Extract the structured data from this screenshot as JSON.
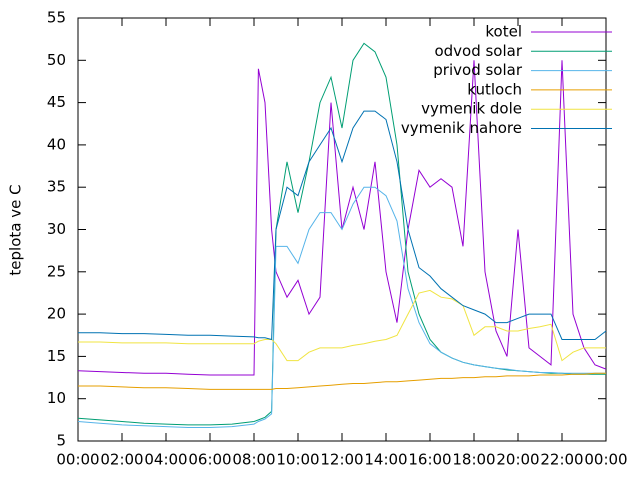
{
  "chart_data": {
    "type": "line",
    "ylabel": "teplota ve C",
    "x": [
      0,
      1,
      2,
      3,
      4,
      5,
      6,
      7,
      8,
      8.2,
      8.5,
      8.8,
      9,
      9.5,
      10,
      10.5,
      11,
      11.5,
      12,
      12.5,
      13,
      13.5,
      14,
      14.5,
      15,
      15.5,
      16,
      16.5,
      17,
      17.5,
      18,
      18.5,
      19,
      19.5,
      20,
      20.5,
      21,
      21.5,
      22,
      22.5,
      23,
      23.5,
      24
    ],
    "xlim": [
      0,
      24
    ],
    "xticks": [
      {
        "value": 0,
        "label": "00:00"
      },
      {
        "value": 2,
        "label": "02:00"
      },
      {
        "value": 4,
        "label": "04:00"
      },
      {
        "value": 6,
        "label": "06:00"
      },
      {
        "value": 8,
        "label": "08:00"
      },
      {
        "value": 10,
        "label": "10:00"
      },
      {
        "value": 12,
        "label": "12:00"
      },
      {
        "value": 14,
        "label": "14:00"
      },
      {
        "value": 16,
        "label": "16:00"
      },
      {
        "value": 18,
        "label": "18:00"
      },
      {
        "value": 20,
        "label": "20:00"
      },
      {
        "value": 22,
        "label": "22:00"
      },
      {
        "value": 24,
        "label": "00:00"
      }
    ],
    "ylim": [
      5,
      55
    ],
    "yticks": [
      5,
      10,
      15,
      20,
      25,
      30,
      35,
      40,
      45,
      50,
      55
    ],
    "legend": "top-right",
    "series": [
      {
        "name": "kotel",
        "color": "#9400d3",
        "values": [
          13.3,
          13.2,
          13.1,
          13,
          13,
          12.9,
          12.8,
          12.8,
          12.8,
          49,
          45,
          30,
          25,
          22,
          24,
          20,
          22,
          45,
          30,
          35,
          30,
          38,
          25,
          19,
          30,
          37,
          35,
          36,
          35,
          28,
          50,
          25,
          18,
          15,
          30,
          16,
          15,
          14,
          50,
          20,
          16,
          14,
          13.5
        ]
      },
      {
        "name": "odvod solar",
        "color": "#009e73",
        "values": [
          7.7,
          7.5,
          7.3,
          7.1,
          7,
          6.9,
          6.9,
          7,
          7.3,
          7.5,
          7.8,
          8.5,
          30,
          38,
          32,
          38,
          45,
          48,
          42,
          50,
          52,
          51,
          48,
          40,
          25,
          20,
          17,
          15.5,
          14.8,
          14.3,
          14,
          13.8,
          13.6,
          13.4,
          13.3,
          13.2,
          13.1,
          13,
          13,
          12.9,
          12.9,
          12.9,
          12.9
        ]
      },
      {
        "name": "privod solar",
        "color": "#56b4e9",
        "values": [
          7.3,
          7.1,
          6.9,
          6.8,
          6.7,
          6.6,
          6.6,
          6.7,
          7,
          7.3,
          7.6,
          8.2,
          28,
          28,
          26,
          30,
          32,
          32,
          30,
          33,
          35,
          35,
          34,
          31,
          23,
          19,
          16.5,
          15.5,
          14.8,
          14.3,
          14,
          13.8,
          13.6,
          13.5,
          13.3,
          13.2,
          13.1,
          13.1,
          13,
          13,
          13,
          13,
          13
        ]
      },
      {
        "name": "kutloch",
        "color": "#e69f00",
        "values": [
          11.5,
          11.5,
          11.4,
          11.3,
          11.3,
          11.2,
          11.1,
          11.1,
          11.1,
          11.1,
          11.1,
          11.1,
          11.2,
          11.2,
          11.3,
          11.4,
          11.5,
          11.6,
          11.7,
          11.8,
          11.8,
          11.9,
          12,
          12,
          12.1,
          12.2,
          12.3,
          12.4,
          12.4,
          12.5,
          12.5,
          12.6,
          12.6,
          12.7,
          12.7,
          12.7,
          12.8,
          12.8,
          12.8,
          12.9,
          12.9,
          13,
          13
        ]
      },
      {
        "name": "vymenik dole",
        "color": "#f0e442",
        "values": [
          16.7,
          16.7,
          16.6,
          16.6,
          16.6,
          16.5,
          16.5,
          16.5,
          16.5,
          16.8,
          17,
          17,
          16.5,
          14.5,
          14.5,
          15.5,
          16,
          16,
          16,
          16.3,
          16.5,
          16.8,
          17,
          17.5,
          20,
          22.5,
          22.8,
          22,
          21.8,
          21,
          17.5,
          18.5,
          18.5,
          18,
          18,
          18.3,
          18.5,
          18.8,
          14.5,
          15.5,
          16,
          16,
          16
        ]
      },
      {
        "name": "vymenik nahore",
        "color": "#0072b2",
        "values": [
          17.8,
          17.8,
          17.7,
          17.7,
          17.6,
          17.5,
          17.5,
          17.4,
          17.3,
          17.2,
          17.2,
          17,
          30,
          35,
          34,
          38,
          40,
          42,
          38,
          42,
          44,
          44,
          43,
          38,
          30,
          25.5,
          24.5,
          23,
          22,
          21,
          20.5,
          20,
          19,
          19,
          19.5,
          20,
          20,
          20,
          17,
          17,
          17,
          17,
          18
        ]
      }
    ]
  }
}
